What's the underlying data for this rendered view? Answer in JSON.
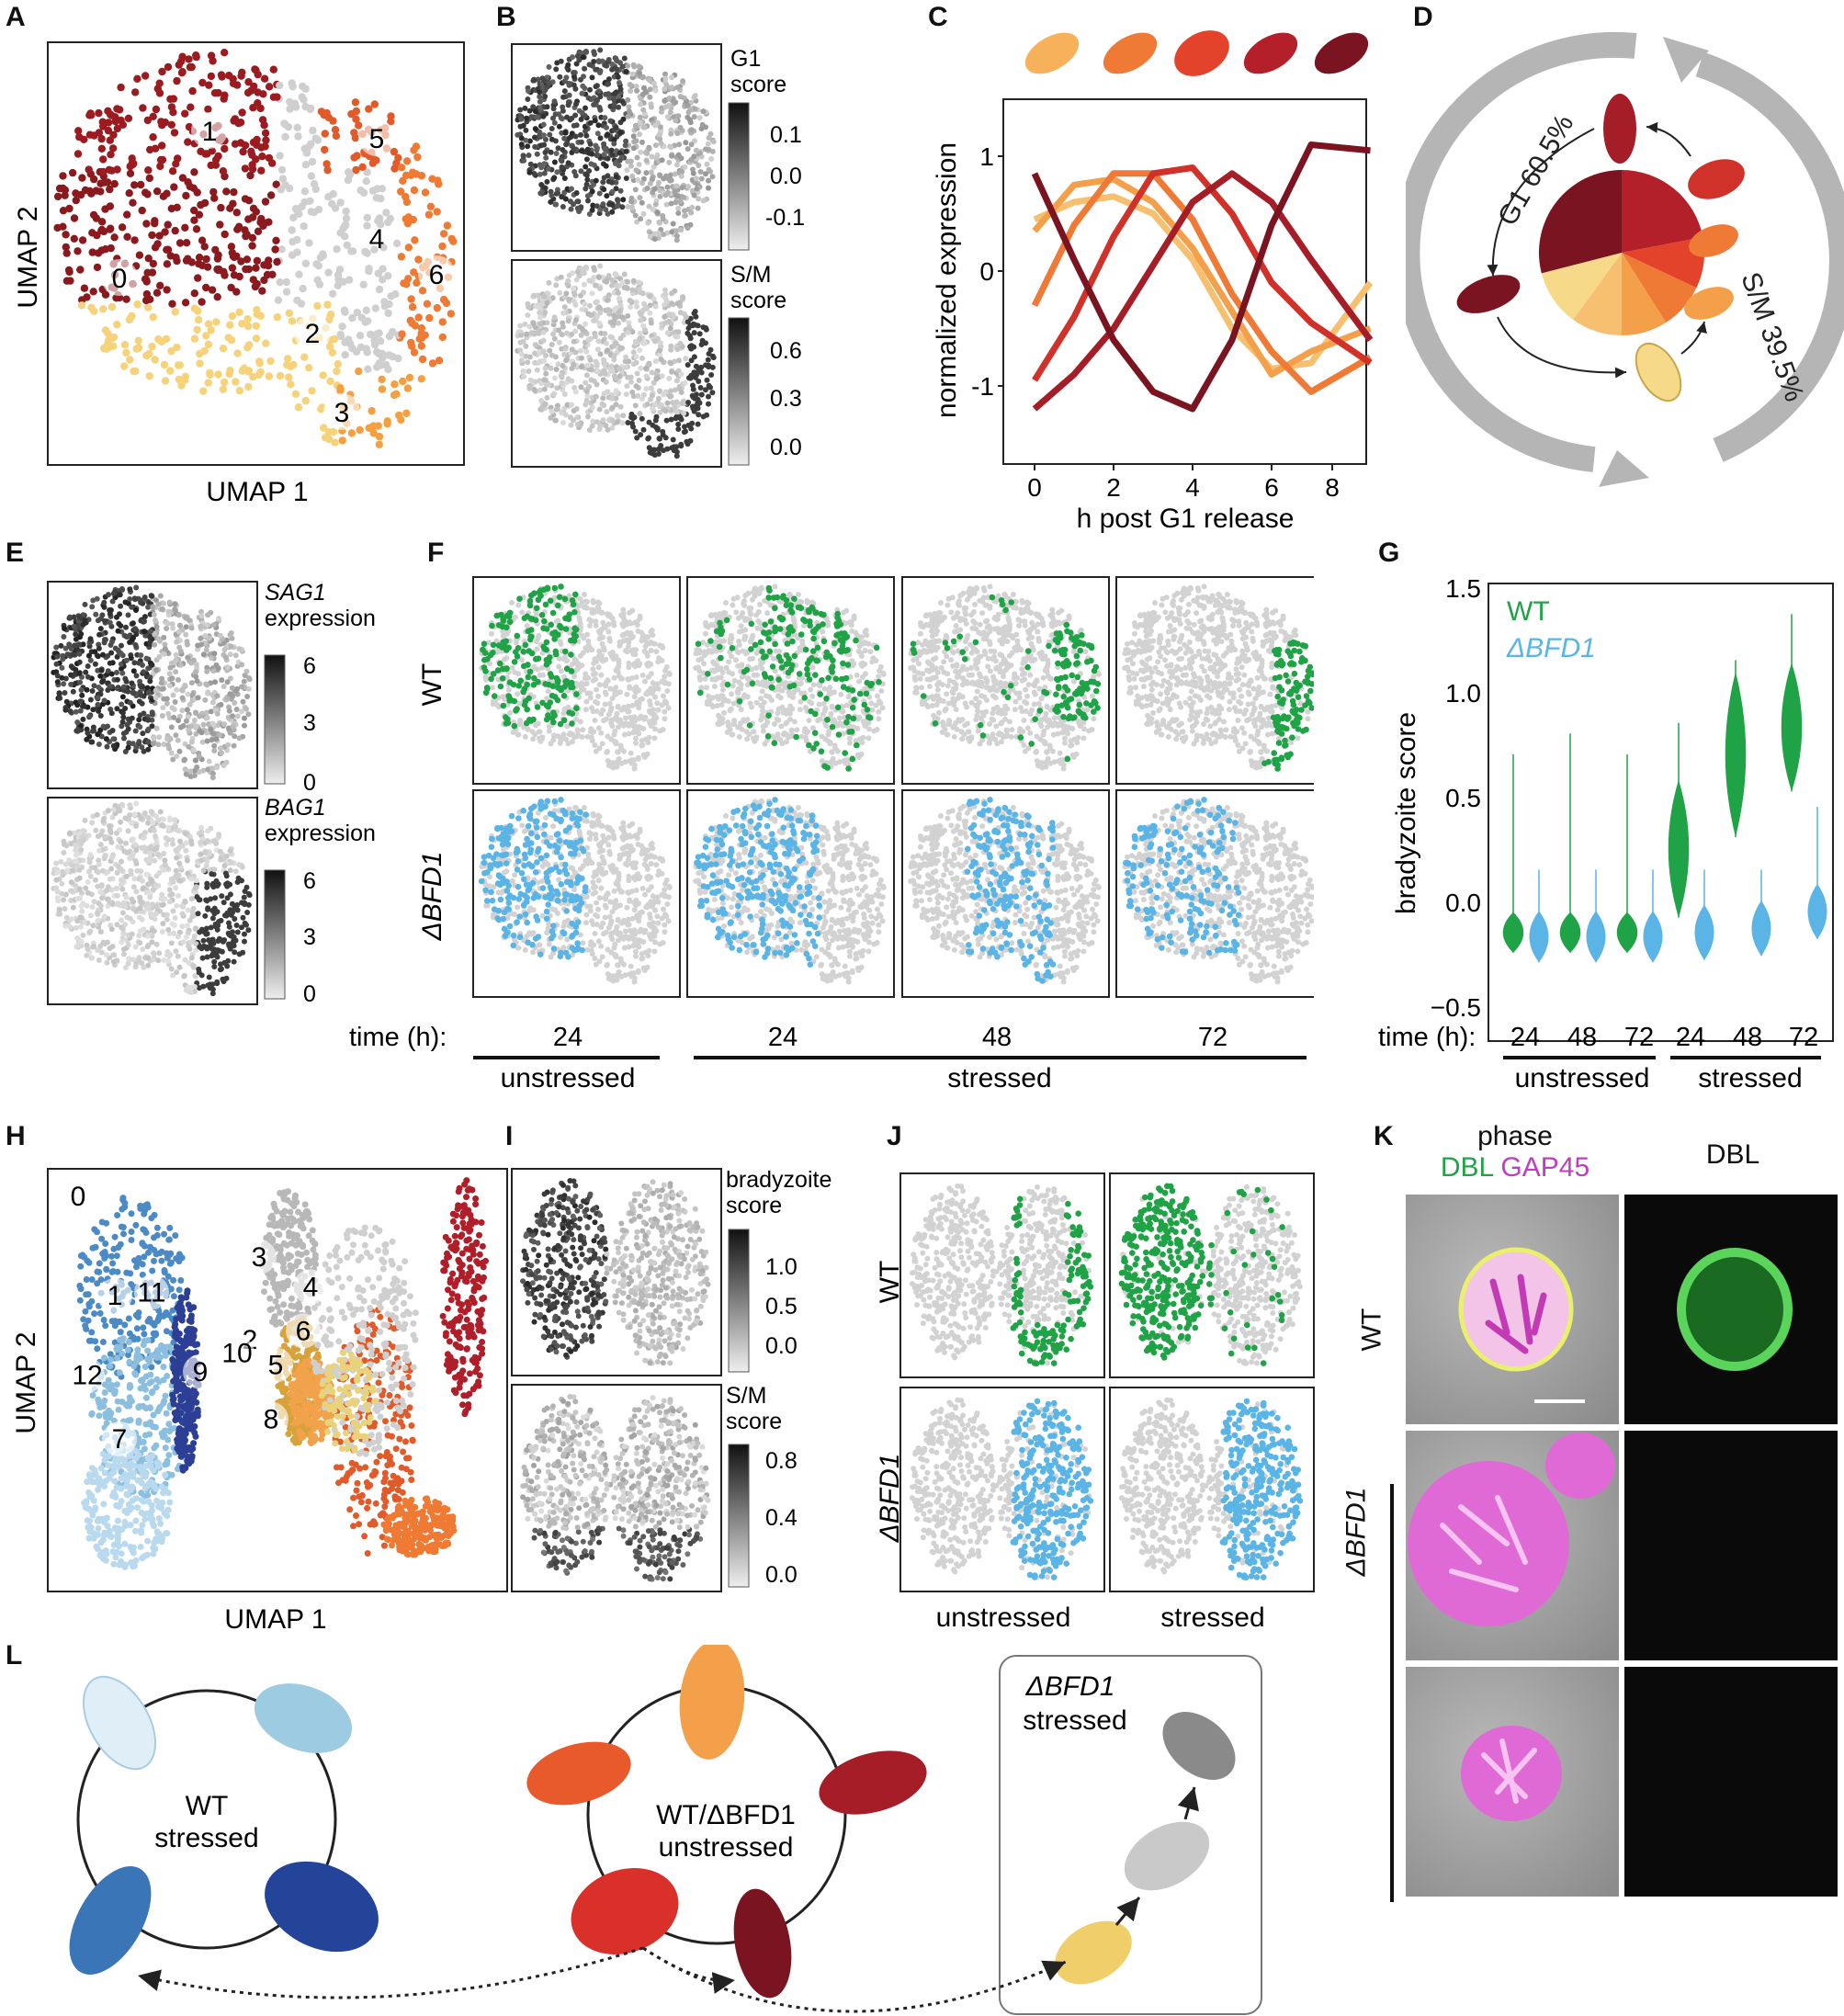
{
  "panel_labels": [
    "A",
    "B",
    "C",
    "D",
    "E",
    "F",
    "G",
    "H",
    "I",
    "J",
    "K",
    "L"
  ],
  "panelA": {
    "xlabel": "UMAP 1",
    "ylabel": "UMAP 2",
    "clusters": [
      "0",
      "1",
      "2",
      "3",
      "4",
      "5",
      "6"
    ],
    "colors": {
      "c0": "#8b1a1f",
      "c1": "#9a1b20",
      "c2": "#f6d27a",
      "c3": "#f4a040",
      "c4": "#cfcfcf",
      "c5": "#e05a2a",
      "c6": "#ee7a34"
    }
  },
  "panelB": {
    "top": {
      "label1": "G1",
      "label2": "score",
      "ticks": [
        "0.1",
        "0.0",
        "-0.1"
      ]
    },
    "bottom": {
      "label1": "S/M",
      "label2": "score",
      "ticks": [
        "0.6",
        "0.3",
        "0.0"
      ]
    }
  },
  "panelC": {
    "xlabel": "h post G1 release",
    "ylabel": "normalized expression",
    "xticks": [
      "0",
      "2",
      "4",
      "6",
      "8"
    ],
    "yticks": [
      "1",
      "0",
      "-1"
    ]
  },
  "panelD": {
    "g1_label": "G1 60.5%",
    "sm_label": "S/M 39.5%",
    "pie_colors": [
      "#b3202a",
      "#e2432a",
      "#ef7a36",
      "#f4a04a",
      "#f7c070",
      "#f7d98a",
      "#7a1420"
    ]
  },
  "panelE": {
    "top": {
      "gene": "SAG1",
      "label2": "expression",
      "ticks": [
        "6",
        "3",
        "0"
      ]
    },
    "bottom": {
      "gene": "BAG1",
      "label2": "expression",
      "ticks": [
        "6",
        "3",
        "0"
      ]
    }
  },
  "panelF": {
    "row_labels": [
      "WT",
      "ΔBFD1"
    ],
    "time_label": "time (h):",
    "times": [
      "24",
      "24",
      "48",
      "72"
    ],
    "group_unstressed": "unstressed",
    "group_stressed": "stressed",
    "wt_color": "#1fa346",
    "ko_color": "#5ab4e5"
  },
  "panelG": {
    "ylabel": "bradyzoite score",
    "legend_wt": "WT",
    "legend_ko": "ΔBFD1",
    "yticks": [
      "1.5",
      "1.0",
      "0.5",
      "0.0",
      "−0.5"
    ],
    "time_label": "time (h):",
    "times": [
      "24",
      "48",
      "72",
      "24",
      "48",
      "72"
    ],
    "group_unstressed": "unstressed",
    "group_stressed": "stressed"
  },
  "chart_data": {
    "type": "violin",
    "ylabel": "bradyzoite score",
    "ylim": [
      -0.5,
      1.5
    ],
    "categories": [
      "24",
      "48",
      "72",
      "24",
      "48",
      "72"
    ],
    "groups": [
      "unstressed",
      "unstressed",
      "unstressed",
      "stressed",
      "stressed",
      "stressed"
    ],
    "series": [
      {
        "name": "WT",
        "medians": [
          -0.1,
          -0.1,
          -0.1,
          0.3,
          0.75,
          0.88
        ]
      },
      {
        "name": "ΔBFD1",
        "medians": [
          -0.12,
          -0.12,
          -0.12,
          -0.1,
          -0.08,
          0.0
        ]
      }
    ]
  },
  "panelH": {
    "xlabel": "UMAP 1",
    "ylabel": "UMAP 2",
    "clusters": [
      "0",
      "1",
      "2",
      "3",
      "4",
      "5",
      "6",
      "7",
      "8",
      "9",
      "10",
      "11",
      "12"
    ]
  },
  "panelI": {
    "top": {
      "label1": "bradyzoite",
      "label2": "score",
      "ticks": [
        "1.0",
        "0.5",
        "0.0"
      ]
    },
    "bottom": {
      "label1": "S/M",
      "label2": "score",
      "ticks": [
        "0.8",
        "0.4",
        "0.0"
      ]
    }
  },
  "panelJ": {
    "row_labels": [
      "WT",
      "ΔBFD1"
    ],
    "col_labels": [
      "unstressed",
      "stressed"
    ]
  },
  "panelK": {
    "col1_line1": "phase",
    "col1_dbl": "DBL",
    "col1_gap": "GAP45",
    "col2": "DBL",
    "row_wt": "WT",
    "row_ko": "ΔBFD1"
  },
  "panelL": {
    "wt_stressed_1": "WT",
    "wt_stressed_2": "stressed",
    "unstressed_1": "WT/ΔBFD1",
    "unstressed_2": "unstressed",
    "ko_box_1": "ΔBFD1",
    "ko_box_2": "stressed"
  }
}
